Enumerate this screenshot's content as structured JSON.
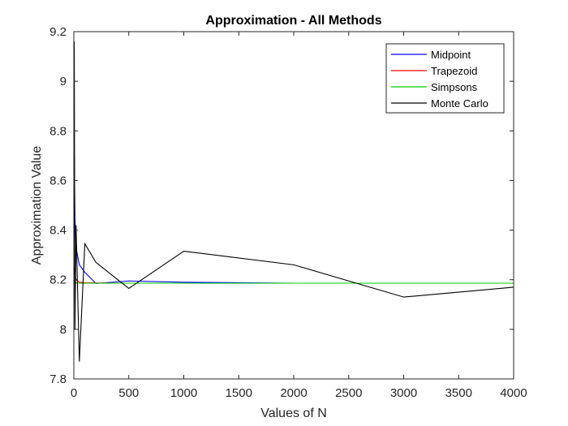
{
  "chart_data": {
    "type": "line",
    "title": "Approximation - All Methods",
    "xlabel": "Values of N",
    "ylabel": "Approximation Value",
    "xlim": [
      0,
      4000
    ],
    "ylim": [
      7.8,
      9.2
    ],
    "xticks": [
      "0",
      "500",
      "1000",
      "1500",
      "2000",
      "2500",
      "3000",
      "3500",
      "4000"
    ],
    "yticks": [
      "7.8",
      "8",
      "8.2",
      "8.4",
      "8.6",
      "8.8",
      "9",
      "9.2"
    ],
    "xtick_values": [
      0,
      500,
      1000,
      1500,
      2000,
      2500,
      3000,
      3500,
      4000
    ],
    "ytick_values": [
      7.8,
      8.0,
      8.2,
      8.4,
      8.6,
      8.8,
      9.0,
      9.2
    ],
    "grid": false,
    "legend_position": "top-right",
    "series": [
      {
        "name": "Midpoint",
        "color": "#0000ff",
        "x": [
          4,
          10,
          20,
          50,
          100,
          200,
          500,
          1000,
          2000,
          3000,
          4000
        ],
        "y": [
          8.7,
          8.45,
          8.33,
          8.26,
          8.23,
          8.185,
          8.195,
          8.19,
          8.186,
          8.186,
          8.186
        ]
      },
      {
        "name": "Trapezoid",
        "color": "#ff0000",
        "x": [
          4,
          10,
          20,
          50,
          100,
          200,
          500,
          1000,
          2000,
          3000,
          4000
        ],
        "y": [
          8.25,
          8.22,
          8.2,
          8.19,
          8.188,
          8.187,
          8.186,
          8.186,
          8.186,
          8.186,
          8.186
        ]
      },
      {
        "name": "Simpsons",
        "color": "#00cc00",
        "x": [
          4,
          10,
          20,
          50,
          100,
          200,
          500,
          1000,
          2000,
          3000,
          4000
        ],
        "y": [
          8.2,
          8.19,
          8.187,
          8.186,
          8.186,
          8.186,
          8.186,
          8.186,
          8.186,
          8.186,
          8.186
        ]
      },
      {
        "name": "Monte Carlo",
        "color": "#000000",
        "x": [
          4,
          10,
          20,
          50,
          100,
          200,
          500,
          1000,
          2000,
          3000,
          4000
        ],
        "y": [
          9.16,
          8.0,
          8.42,
          7.87,
          8.345,
          8.27,
          8.165,
          8.315,
          8.26,
          8.13,
          8.17
        ]
      }
    ]
  }
}
